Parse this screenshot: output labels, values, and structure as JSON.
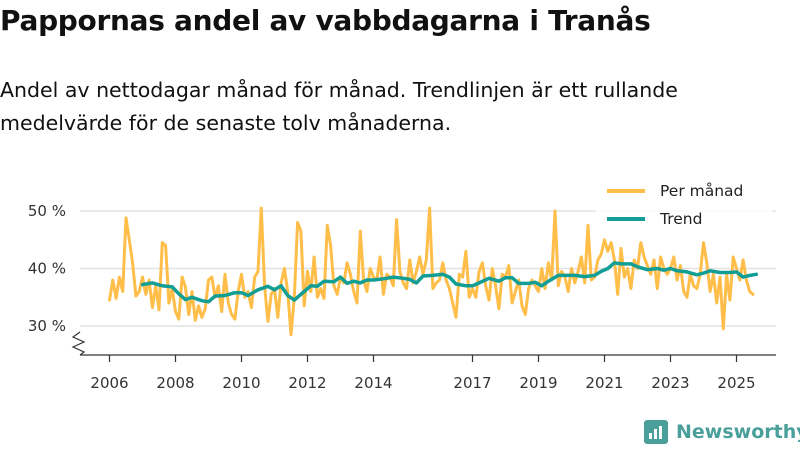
{
  "title": "Pappornas andel av vabbdagarna i Tranås",
  "subtitle": "Andel av nettodagar månad för månad. Trendlinjen är ett rullande medelvärde för de senaste tolv månaderna.",
  "brand": "Newsworthy",
  "colors": {
    "monthly": "#ffbe4a",
    "trend": "#129d95",
    "grid": "#e2e2e2",
    "axis": "#333333",
    "brand": "#4a9f9a"
  },
  "chart_data": {
    "type": "line",
    "title": "Pappornas andel av vabbdagarna i Tranås",
    "xlabel": "",
    "ylabel": "",
    "ylim": [
      25,
      52
    ],
    "xlim": [
      2005.3,
      2025.9
    ],
    "y_ticks": [
      30,
      40,
      50
    ],
    "y_tick_labels": [
      "30 %",
      "40 %",
      "50 %"
    ],
    "x_ticks": [
      2006,
      2008,
      2010,
      2012,
      2014,
      2017,
      2019,
      2021,
      2023,
      2025
    ],
    "x_tick_labels": [
      "2006",
      "2008",
      "2010",
      "2012",
      "2014",
      "2017",
      "2019",
      "2021",
      "2023",
      "2025"
    ],
    "legend": {
      "position": "top-right",
      "entries": [
        "Per månad",
        "Trend"
      ]
    },
    "series": [
      {
        "name": "Per månad",
        "color": "#ffbe4a",
        "points": [
          [
            2006.0,
            34.5
          ],
          [
            2006.1,
            38.0
          ],
          [
            2006.2,
            34.8
          ],
          [
            2006.3,
            38.5
          ],
          [
            2006.4,
            36.0
          ],
          [
            2006.5,
            48.8
          ],
          [
            2006.6,
            45.0
          ],
          [
            2006.7,
            41.0
          ],
          [
            2006.8,
            35.2
          ],
          [
            2006.9,
            36.0
          ],
          [
            2007.0,
            38.5
          ],
          [
            2007.1,
            35.5
          ],
          [
            2007.2,
            38.0
          ],
          [
            2007.3,
            33.2
          ],
          [
            2007.4,
            37.0
          ],
          [
            2007.5,
            32.8
          ],
          [
            2007.6,
            44.5
          ],
          [
            2007.7,
            44.0
          ],
          [
            2007.8,
            34.0
          ],
          [
            2007.9,
            36.5
          ],
          [
            2008.0,
            32.5
          ],
          [
            2008.1,
            31.2
          ],
          [
            2008.2,
            38.5
          ],
          [
            2008.3,
            36.8
          ],
          [
            2008.4,
            32.0
          ],
          [
            2008.5,
            36.0
          ],
          [
            2008.6,
            31.0
          ],
          [
            2008.7,
            33.5
          ],
          [
            2008.8,
            31.5
          ],
          [
            2008.9,
            33.0
          ],
          [
            2009.0,
            38.0
          ],
          [
            2009.1,
            38.5
          ],
          [
            2009.2,
            35.0
          ],
          [
            2009.3,
            37.0
          ],
          [
            2009.4,
            32.5
          ],
          [
            2009.5,
            39.0
          ],
          [
            2009.6,
            34.0
          ],
          [
            2009.7,
            32.0
          ],
          [
            2009.8,
            31.2
          ],
          [
            2009.9,
            36.0
          ],
          [
            2010.0,
            39.0
          ],
          [
            2010.1,
            35.0
          ],
          [
            2010.2,
            36.0
          ],
          [
            2010.3,
            33.2
          ],
          [
            2010.4,
            38.5
          ],
          [
            2010.5,
            39.5
          ],
          [
            2010.6,
            50.5
          ],
          [
            2010.7,
            37.0
          ],
          [
            2010.8,
            30.8
          ],
          [
            2010.9,
            35.5
          ],
          [
            2011.0,
            36.5
          ],
          [
            2011.1,
            31.5
          ],
          [
            2011.2,
            37.5
          ],
          [
            2011.3,
            40.0
          ],
          [
            2011.4,
            36.0
          ],
          [
            2011.5,
            28.5
          ],
          [
            2011.6,
            35.0
          ],
          [
            2011.7,
            48.0
          ],
          [
            2011.8,
            46.5
          ],
          [
            2011.9,
            33.5
          ],
          [
            2012.0,
            39.5
          ],
          [
            2012.1,
            36.0
          ],
          [
            2012.2,
            42.0
          ],
          [
            2012.3,
            35.0
          ],
          [
            2012.4,
            36.5
          ],
          [
            2012.5,
            34.8
          ],
          [
            2012.6,
            47.5
          ],
          [
            2012.7,
            44.0
          ],
          [
            2012.8,
            37.0
          ],
          [
            2012.9,
            35.5
          ],
          [
            2013.0,
            38.5
          ],
          [
            2013.1,
            37.5
          ],
          [
            2013.2,
            41.0
          ],
          [
            2013.3,
            39.0
          ],
          [
            2013.4,
            36.0
          ],
          [
            2013.5,
            34.0
          ],
          [
            2013.6,
            46.5
          ],
          [
            2013.7,
            38.0
          ],
          [
            2013.8,
            36.0
          ],
          [
            2013.9,
            40.0
          ],
          [
            2014.0,
            38.5
          ],
          [
            2014.1,
            38.0
          ],
          [
            2014.2,
            42.0
          ],
          [
            2014.3,
            35.5
          ],
          [
            2014.4,
            39.0
          ],
          [
            2014.5,
            38.5
          ],
          [
            2014.6,
            37.0
          ],
          [
            2014.7,
            48.5
          ],
          [
            2014.8,
            39.5
          ],
          [
            2014.9,
            37.5
          ],
          [
            2015.0,
            36.5
          ],
          [
            2015.1,
            41.5
          ],
          [
            2015.2,
            37.5
          ],
          [
            2015.3,
            39.5
          ],
          [
            2015.4,
            42.0
          ],
          [
            2015.5,
            39.0
          ],
          [
            2015.6,
            41.5
          ],
          [
            2015.7,
            50.5
          ],
          [
            2015.8,
            36.5
          ],
          [
            2015.9,
            37.5
          ],
          [
            2016.0,
            38.0
          ],
          [
            2016.1,
            41.0
          ],
          [
            2016.2,
            38.0
          ],
          [
            2016.3,
            36.5
          ],
          [
            2016.4,
            34.0
          ],
          [
            2016.5,
            31.5
          ],
          [
            2016.6,
            39.0
          ],
          [
            2016.7,
            38.5
          ],
          [
            2016.8,
            43.0
          ],
          [
            2016.9,
            35.0
          ],
          [
            2017.0,
            36.5
          ],
          [
            2017.1,
            35.0
          ],
          [
            2017.2,
            39.5
          ],
          [
            2017.3,
            41.0
          ],
          [
            2017.4,
            37.0
          ],
          [
            2017.5,
            34.5
          ],
          [
            2017.6,
            40.0
          ],
          [
            2017.7,
            37.0
          ],
          [
            2017.8,
            33.0
          ],
          [
            2017.9,
            39.0
          ],
          [
            2018.0,
            38.5
          ],
          [
            2018.1,
            40.5
          ],
          [
            2018.2,
            34.0
          ],
          [
            2018.3,
            36.0
          ],
          [
            2018.4,
            38.0
          ],
          [
            2018.5,
            33.5
          ],
          [
            2018.6,
            32.0
          ],
          [
            2018.7,
            36.5
          ],
          [
            2018.8,
            38.0
          ],
          [
            2018.9,
            37.0
          ],
          [
            2019.0,
            36.0
          ],
          [
            2019.1,
            40.0
          ],
          [
            2019.2,
            36.5
          ],
          [
            2019.3,
            41.0
          ],
          [
            2019.4,
            38.0
          ],
          [
            2019.5,
            50.0
          ],
          [
            2019.6,
            37.0
          ],
          [
            2019.7,
            39.5
          ],
          [
            2019.8,
            38.5
          ],
          [
            2019.9,
            36.0
          ],
          [
            2020.0,
            40.0
          ],
          [
            2020.1,
            37.5
          ],
          [
            2020.2,
            39.5
          ],
          [
            2020.3,
            42.0
          ],
          [
            2020.4,
            37.5
          ],
          [
            2020.5,
            47.5
          ],
          [
            2020.6,
            38.0
          ],
          [
            2020.7,
            38.5
          ],
          [
            2020.8,
            41.5
          ],
          [
            2020.9,
            42.5
          ],
          [
            2021.0,
            45.0
          ],
          [
            2021.1,
            43.0
          ],
          [
            2021.2,
            44.5
          ],
          [
            2021.3,
            41.5
          ],
          [
            2021.4,
            35.5
          ],
          [
            2021.5,
            43.5
          ],
          [
            2021.6,
            38.5
          ],
          [
            2021.7,
            40.0
          ],
          [
            2021.8,
            36.5
          ],
          [
            2021.9,
            41.5
          ],
          [
            2022.0,
            40.0
          ],
          [
            2022.1,
            44.5
          ],
          [
            2022.2,
            42.0
          ],
          [
            2022.3,
            40.5
          ],
          [
            2022.4,
            39.0
          ],
          [
            2022.5,
            41.5
          ],
          [
            2022.6,
            36.5
          ],
          [
            2022.7,
            42.0
          ],
          [
            2022.8,
            40.0
          ],
          [
            2022.9,
            39.0
          ],
          [
            2023.0,
            40.0
          ],
          [
            2023.1,
            42.0
          ],
          [
            2023.2,
            38.0
          ],
          [
            2023.3,
            40.5
          ],
          [
            2023.4,
            36.0
          ],
          [
            2023.5,
            35.0
          ],
          [
            2023.6,
            39.0
          ],
          [
            2023.7,
            37.0
          ],
          [
            2023.8,
            36.5
          ],
          [
            2023.9,
            39.0
          ],
          [
            2024.0,
            44.5
          ],
          [
            2024.1,
            41.0
          ],
          [
            2024.2,
            36.0
          ],
          [
            2024.3,
            39.0
          ],
          [
            2024.4,
            34.0
          ],
          [
            2024.5,
            38.5
          ],
          [
            2024.6,
            29.5
          ],
          [
            2024.7,
            39.0
          ],
          [
            2024.8,
            34.5
          ],
          [
            2024.9,
            42.0
          ],
          [
            2025.0,
            40.0
          ],
          [
            2025.1,
            38.0
          ],
          [
            2025.2,
            41.5
          ],
          [
            2025.3,
            38.0
          ],
          [
            2025.4,
            36.0
          ],
          [
            2025.5,
            35.5
          ]
        ]
      },
      {
        "name": "Trend",
        "color": "#129d95",
        "points": [
          [
            2007.0,
            37.2
          ],
          [
            2007.3,
            37.5
          ],
          [
            2007.6,
            37.0
          ],
          [
            2007.9,
            36.8
          ],
          [
            2008.1,
            35.6
          ],
          [
            2008.3,
            34.6
          ],
          [
            2008.5,
            35.0
          ],
          [
            2008.8,
            34.4
          ],
          [
            2009.0,
            34.2
          ],
          [
            2009.2,
            35.2
          ],
          [
            2009.5,
            35.3
          ],
          [
            2009.8,
            35.8
          ],
          [
            2010.0,
            35.8
          ],
          [
            2010.2,
            35.3
          ],
          [
            2010.5,
            36.3
          ],
          [
            2010.8,
            36.9
          ],
          [
            2011.0,
            36.3
          ],
          [
            2011.2,
            37.0
          ],
          [
            2011.4,
            35.3
          ],
          [
            2011.6,
            34.5
          ],
          [
            2011.9,
            36.0
          ],
          [
            2012.1,
            37.0
          ],
          [
            2012.3,
            36.9
          ],
          [
            2012.5,
            37.8
          ],
          [
            2012.8,
            37.7
          ],
          [
            2013.0,
            38.5
          ],
          [
            2013.2,
            37.4
          ],
          [
            2013.4,
            37.8
          ],
          [
            2013.6,
            37.5
          ],
          [
            2013.8,
            38.0
          ],
          [
            2014.0,
            38.0
          ],
          [
            2014.3,
            38.2
          ],
          [
            2014.6,
            38.5
          ],
          [
            2014.9,
            38.3
          ],
          [
            2015.1,
            38.1
          ],
          [
            2015.3,
            37.5
          ],
          [
            2015.5,
            38.7
          ],
          [
            2015.8,
            38.8
          ],
          [
            2016.1,
            39.0
          ],
          [
            2016.3,
            38.5
          ],
          [
            2016.5,
            37.3
          ],
          [
            2016.8,
            37.0
          ],
          [
            2017.0,
            37.0
          ],
          [
            2017.2,
            37.5
          ],
          [
            2017.5,
            38.3
          ],
          [
            2017.8,
            37.8
          ],
          [
            2018.0,
            38.4
          ],
          [
            2018.2,
            38.4
          ],
          [
            2018.4,
            37.4
          ],
          [
            2018.7,
            37.4
          ],
          [
            2018.9,
            37.6
          ],
          [
            2019.1,
            37.0
          ],
          [
            2019.3,
            37.8
          ],
          [
            2019.6,
            38.8
          ],
          [
            2019.9,
            38.8
          ],
          [
            2020.1,
            38.8
          ],
          [
            2020.4,
            38.6
          ],
          [
            2020.7,
            38.8
          ],
          [
            2020.9,
            39.5
          ],
          [
            2021.1,
            40.0
          ],
          [
            2021.3,
            41.0
          ],
          [
            2021.5,
            40.8
          ],
          [
            2021.8,
            40.8
          ],
          [
            2022.0,
            40.3
          ],
          [
            2022.3,
            39.8
          ],
          [
            2022.6,
            40.0
          ],
          [
            2022.8,
            39.7
          ],
          [
            2023.0,
            40.0
          ],
          [
            2023.2,
            39.6
          ],
          [
            2023.5,
            39.4
          ],
          [
            2023.8,
            38.9
          ],
          [
            2024.0,
            39.2
          ],
          [
            2024.2,
            39.6
          ],
          [
            2024.5,
            39.3
          ],
          [
            2024.8,
            39.3
          ],
          [
            2025.0,
            39.4
          ],
          [
            2025.2,
            38.5
          ],
          [
            2025.4,
            38.8
          ],
          [
            2025.6,
            39.0
          ]
        ]
      }
    ]
  }
}
